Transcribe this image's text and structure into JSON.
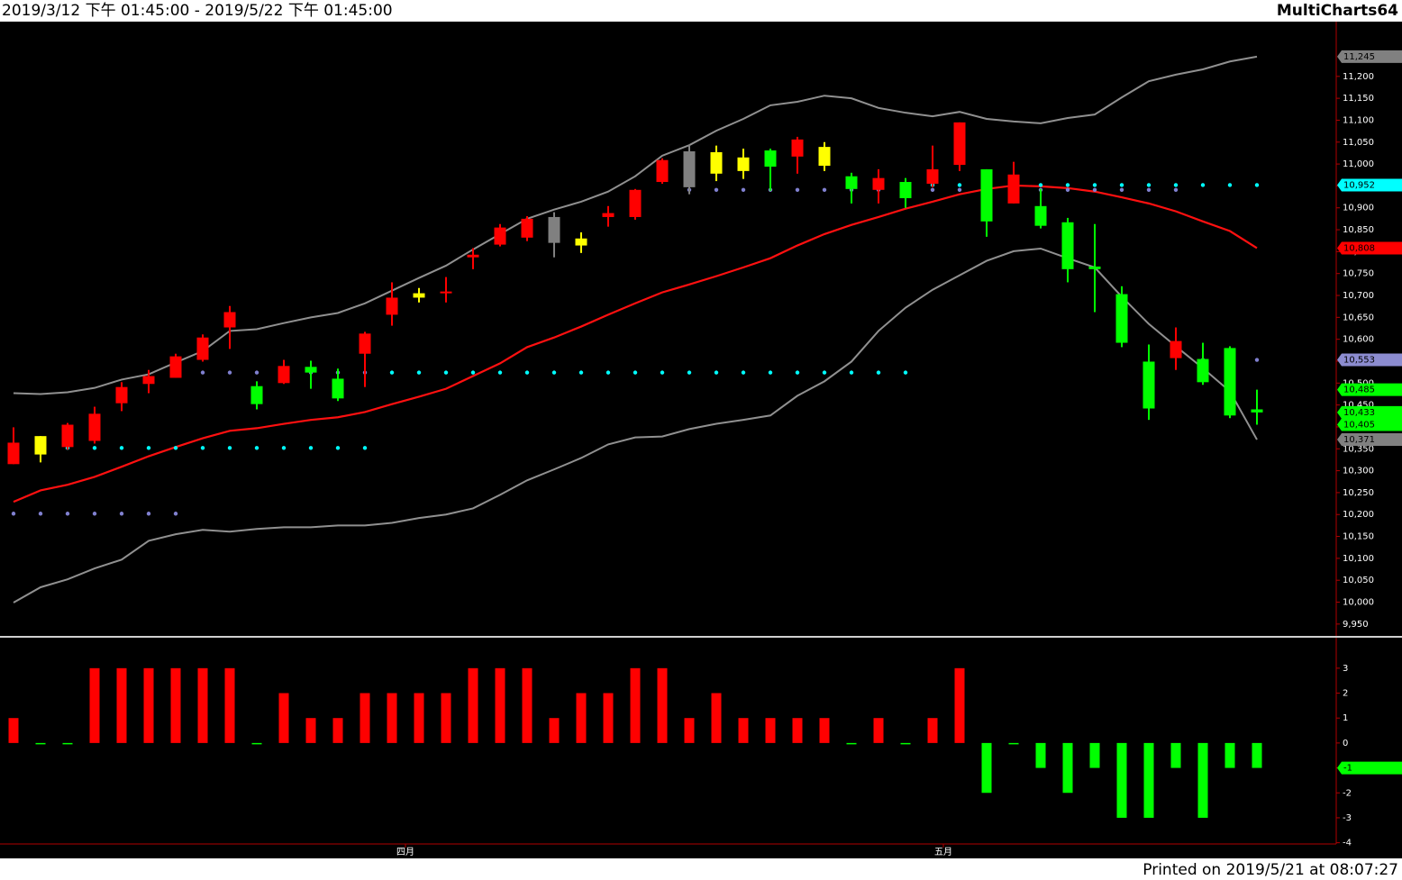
{
  "header": {
    "range": "2019/3/12 下午 01:45:00 - 2019/5/22 下午 01:45:00",
    "app": "MultiCharts64"
  },
  "footer": "Printed on 2019/5/21 at 08:07:27",
  "chart_data": [
    {
      "type": "candlestick",
      "open": [
        10315,
        10337,
        10354,
        10368,
        10454,
        10498,
        10512,
        10553,
        10627,
        10493,
        10500,
        10537,
        10510,
        10567,
        10656,
        10695,
        10705,
        10787,
        10816,
        10832,
        10879,
        10814,
        10879,
        10879,
        10959,
        11029,
        10978,
        10984,
        11031,
        11017,
        10996,
        10972,
        10941,
        10959,
        10955,
        10998,
        10988,
        10910,
        10904,
        10867,
        10766,
        10703,
        10549,
        10557,
        10555,
        10580,
        10440
      ],
      "high": [
        10399,
        10379,
        10409,
        10446,
        10502,
        10530,
        10567,
        10611,
        10676,
        10504,
        10553,
        10551,
        10533,
        10617,
        10730,
        10717,
        10742,
        10808,
        10863,
        10881,
        10890,
        10844,
        10904,
        10943,
        11013,
        11044,
        11042,
        11035,
        11035,
        11062,
        11050,
        10980,
        10988,
        10968,
        11042,
        11095,
        10988,
        11005,
        10943,
        10877,
        10863,
        10721,
        10588,
        10627,
        10592,
        10584,
        10485
      ],
      "low": [
        10315,
        10319,
        10348,
        10362,
        10436,
        10477,
        10512,
        10549,
        10578,
        10440,
        10498,
        10487,
        10459,
        10491,
        10631,
        10684,
        10684,
        10760,
        10812,
        10824,
        10787,
        10797,
        10857,
        10873,
        10955,
        10931,
        10961,
        10966,
        10939,
        10978,
        10984,
        10910,
        10910,
        10900,
        10947,
        10984,
        10834,
        10910,
        10853,
        10730,
        10662,
        10582,
        10416,
        10530,
        10496,
        10420,
        10405
      ],
      "close": [
        10364,
        10379,
        10405,
        10430,
        10491,
        10516,
        10561,
        10604,
        10662,
        10452,
        10539,
        10524,
        10465,
        10613,
        10695,
        10705,
        10709,
        10793,
        10855,
        10875,
        10820,
        10830,
        10888,
        10941,
        11009,
        10947,
        11027,
        11015,
        10994,
        11056,
        11039,
        10943,
        10968,
        10922,
        10988,
        11095,
        10869,
        10976,
        10859,
        10760,
        10760,
        10592,
        10442,
        10596,
        10502,
        10426,
        10433
      ],
      "colors": [
        "#ff0000",
        "#ffff00",
        "#ff0000",
        "#ff0000",
        "#ff0000",
        "#ff0000",
        "#ff0000",
        "#ff0000",
        "#ff0000",
        "#00ff00",
        "#ff0000",
        "#00ff00",
        "#00ff00",
        "#ff0000",
        "#ff0000",
        "#ffff00",
        "#ff0000",
        "#ff0000",
        "#ff0000",
        "#ff0000",
        "#808080",
        "#ffff00",
        "#ff0000",
        "#ff0000",
        "#ff0000",
        "#808080",
        "#ffff00",
        "#ffff00",
        "#00ff00",
        "#ff0000",
        "#ffff00",
        "#00ff00",
        "#ff0000",
        "#00ff00",
        "#ff0000",
        "#ff0000",
        "#00ff00",
        "#ff0000",
        "#00ff00",
        "#00ff00",
        "#00ff00",
        "#00ff00",
        "#00ff00",
        "#ff0000",
        "#00ff00",
        "#00ff00",
        "#00ff00"
      ],
      "bands": [
        {
          "color": "#909090",
          "values": [
            10477,
            10475,
            10479,
            10489,
            10508,
            10520,
            10547,
            10573,
            10619,
            10623,
            10637,
            10650,
            10660,
            10682,
            10711,
            10740,
            10768,
            10805,
            10840,
            10875,
            10896,
            10914,
            10937,
            10972,
            11019,
            11043,
            11076,
            11103,
            11134,
            11142,
            11156,
            11150,
            11128,
            11117,
            11109,
            11119,
            11103,
            11097,
            11093,
            11105,
            11113,
            11152,
            11189,
            11204,
            11216,
            11234,
            11245
          ]
        },
        {
          "color": "#ff1010",
          "values": [
            10229,
            10255,
            10268,
            10286,
            10309,
            10333,
            10354,
            10374,
            10391,
            10397,
            10407,
            10416,
            10422,
            10434,
            10452,
            10469,
            10487,
            10516,
            10545,
            10582,
            10604,
            10629,
            10656,
            10682,
            10707,
            10725,
            10744,
            10764,
            10785,
            10814,
            10840,
            10861,
            10879,
            10898,
            10914,
            10931,
            10943,
            10951,
            10949,
            10945,
            10937,
            10924,
            10910,
            10892,
            10869,
            10847,
            10808
          ]
        },
        {
          "color": "#909090",
          "values": [
            9999,
            10034,
            10052,
            10077,
            10097,
            10140,
            10155,
            10165,
            10161,
            10167,
            10171,
            10171,
            10175,
            10175,
            10181,
            10192,
            10200,
            10214,
            10245,
            10278,
            10303,
            10329,
            10360,
            10376,
            10378,
            10395,
            10407,
            10416,
            10426,
            10471,
            10504,
            10549,
            10619,
            10672,
            10713,
            10746,
            10779,
            10801,
            10807,
            10785,
            10764,
            10697,
            10635,
            10584,
            10534,
            10481,
            10371
          ]
        }
      ],
      "dots": [
        {
          "color": "#8080d0",
          "values": [
            10202,
            10202,
            10202,
            10202,
            10202,
            10202,
            10202,
            10524,
            10524,
            10524,
            10524,
            10524,
            10524,
            10524,
            null,
            null,
            null,
            null,
            null,
            null,
            null,
            null,
            null,
            null,
            null,
            10941,
            10941,
            10941,
            10941,
            10941,
            10941,
            10941,
            10941,
            10941,
            10941,
            10941,
            10941,
            10941,
            10941,
            10941,
            10941,
            10941,
            10941,
            10941,
            10553,
            10553,
            10553
          ]
        },
        {
          "color": "#00ffff",
          "values": [
            10352,
            10352,
            10352,
            10352,
            10352,
            10352,
            10352,
            10352,
            10352,
            10352,
            10352,
            10352,
            10352,
            10352,
            10524,
            10524,
            10524,
            10524,
            10524,
            10524,
            10524,
            10524,
            10524,
            10524,
            10524,
            10524,
            10524,
            10524,
            10524,
            10524,
            10524,
            10524,
            10524,
            10524,
            10952,
            10952,
            10952,
            10952,
            10952,
            10952,
            10952,
            10952,
            10952,
            10952,
            10952,
            10952,
            10952
          ]
        }
      ],
      "ylim": [
        9925,
        11325
      ],
      "yticks": [
        {
          "value": 9950,
          "label": "9,950"
        },
        {
          "value": 10000,
          "label": "10,000"
        },
        {
          "value": 10050,
          "label": "10,050"
        },
        {
          "value": 10100,
          "label": "10,100"
        },
        {
          "value": 10150,
          "label": "10,150"
        },
        {
          "value": 10200,
          "label": "10,200"
        },
        {
          "value": 10250,
          "label": "10,250"
        },
        {
          "value": 10300,
          "label": "10,300"
        },
        {
          "value": 10350,
          "label": "10,350"
        },
        {
          "value": 10400,
          "label": "10,400"
        },
        {
          "value": 10450,
          "label": "10,450"
        },
        {
          "value": 10500,
          "label": "10,500"
        },
        {
          "value": 10550,
          "label": "10,550"
        },
        {
          "value": 10600,
          "label": "10,600"
        },
        {
          "value": 10650,
          "label": "10,650"
        },
        {
          "value": 10700,
          "label": "10,700"
        },
        {
          "value": 10750,
          "label": "10,750"
        },
        {
          "value": 10800,
          "label": "10,800"
        },
        {
          "value": 10850,
          "label": "10,850"
        },
        {
          "value": 10900,
          "label": "10,900"
        },
        {
          "value": 10950,
          "label": "10,950"
        },
        {
          "value": 11000,
          "label": "11,000"
        },
        {
          "value": 11050,
          "label": "11,050"
        },
        {
          "value": 11100,
          "label": "11,100"
        },
        {
          "value": 11150,
          "label": "11,150"
        },
        {
          "value": 11200,
          "label": "11,200"
        }
      ],
      "price_tags": [
        {
          "value": 11245,
          "label": "11,245",
          "color": "#808080"
        },
        {
          "value": 10952,
          "label": "10,952",
          "color": "#00ffff"
        },
        {
          "value": 10808,
          "label": "10,808",
          "color": "#ff0000"
        },
        {
          "value": 10553,
          "label": "10,553",
          "color": "#8c8cd0"
        },
        {
          "value": 10485,
          "label": "10,485",
          "color": "#00ff00"
        },
        {
          "value": 10433,
          "label": "10,433",
          "color": "#00ff00"
        },
        {
          "value": 10405,
          "label": "10,405",
          "color": "#00ff00"
        },
        {
          "value": 10371,
          "label": "10,371",
          "color": "#808080"
        }
      ]
    },
    {
      "type": "bar",
      "values": [
        1,
        0,
        0,
        3,
        3,
        3,
        3,
        3,
        3,
        0,
        2,
        1,
        1,
        2,
        2,
        2,
        2,
        3,
        3,
        3,
        1,
        2,
        2,
        3,
        3,
        1,
        2,
        1,
        1,
        1,
        1,
        0,
        1,
        0,
        1,
        3,
        -2,
        0,
        -1,
        -2,
        -1,
        -3,
        -3,
        -1,
        -3,
        -1,
        -1
      ],
      "up_color": "#ff0000",
      "down_color": "#00ff00",
      "ylim": [
        -4.05,
        4.15
      ],
      "yticks": [
        -4,
        -3,
        -2,
        -1,
        0,
        1,
        2,
        3
      ],
      "price_tags": [
        {
          "value": -1,
          "label": "-1",
          "color": "#00ff00"
        }
      ],
      "xticks": [
        {
          "value": 14.5,
          "label": "四月"
        },
        {
          "value": 34.4,
          "label": "五月"
        }
      ]
    }
  ]
}
